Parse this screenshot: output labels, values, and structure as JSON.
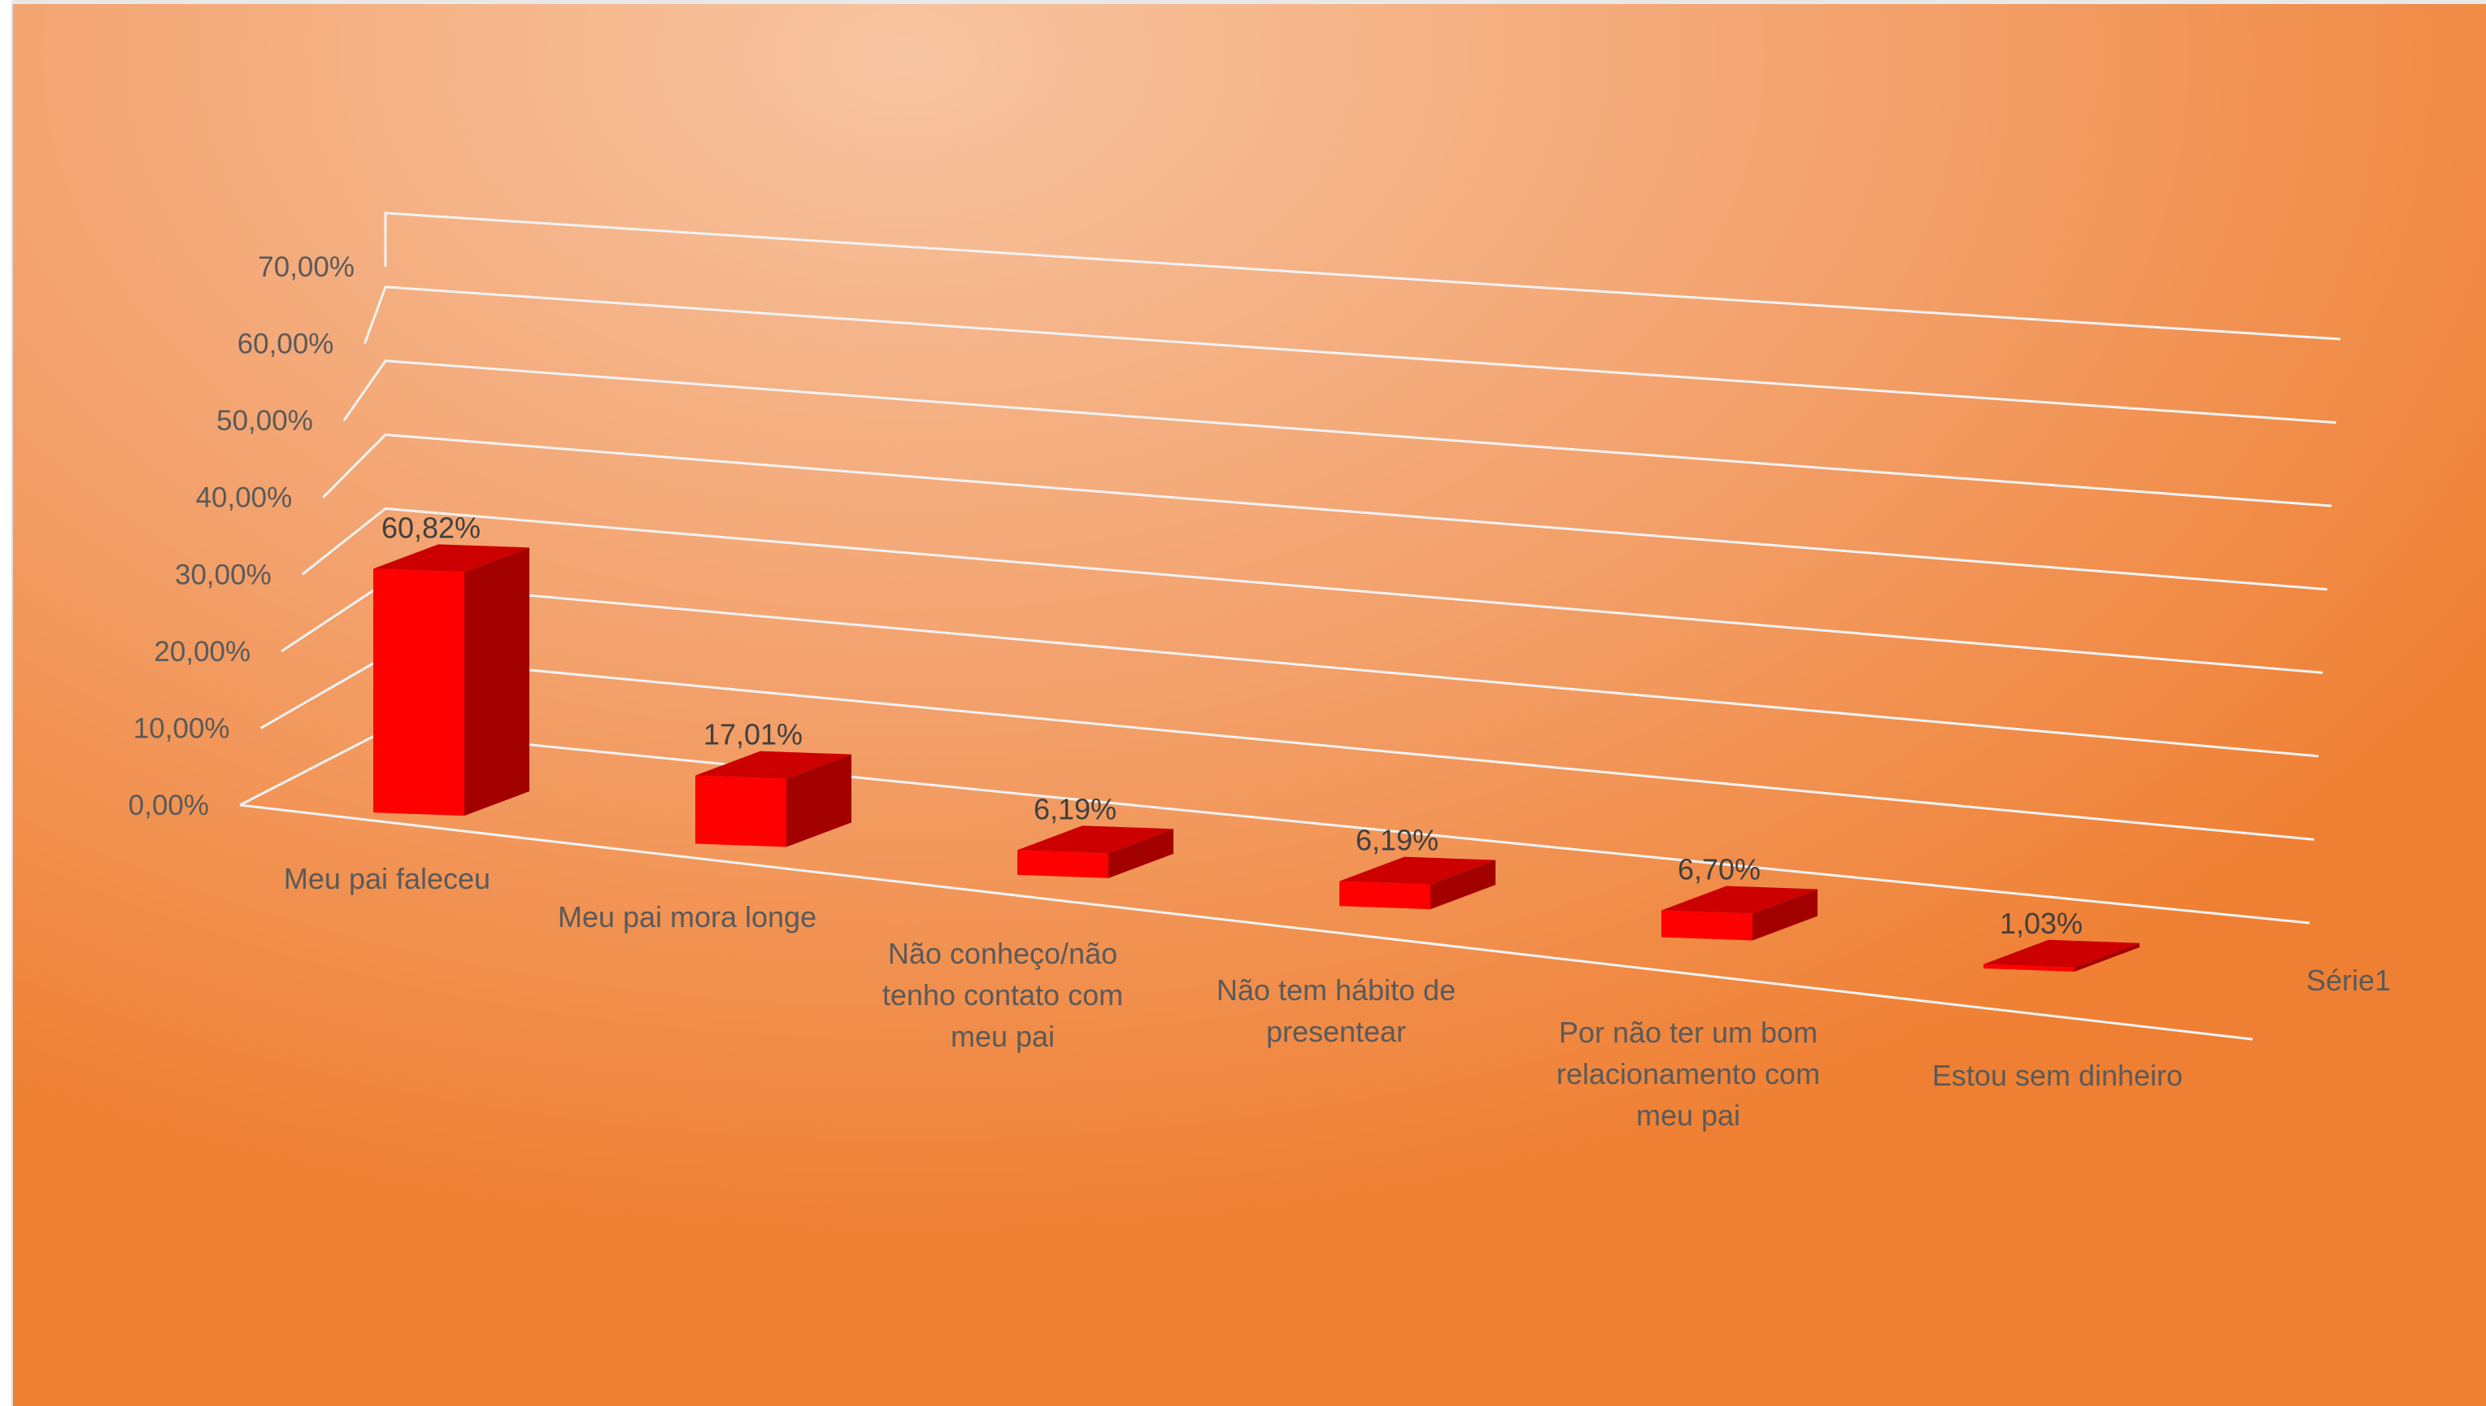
{
  "chart_data": {
    "type": "bar",
    "title": "",
    "xlabel": "",
    "ylabel": "",
    "categories": [
      [
        "Meu pai faleceu"
      ],
      [
        "Meu pai mora longe"
      ],
      [
        "Não conheço/não",
        "tenho contato com",
        "meu pai"
      ],
      [
        "Não tem hábito de",
        "presentear"
      ],
      [
        "Por não ter um bom",
        "relacionamento com",
        "meu pai"
      ],
      [
        "Estou sem dinheiro"
      ]
    ],
    "series": [
      {
        "name": "Série1",
        "values": [
          60.82,
          17.01,
          6.19,
          6.19,
          6.7,
          1.03
        ],
        "labels": [
          "60,82%",
          "17,01%",
          "6,19%",
          "6,19%",
          "6,70%",
          "1,03%"
        ]
      }
    ],
    "ylim": [
      0,
      70
    ],
    "yticks": [
      "0,00%",
      "10,00%",
      "20,00%",
      "30,00%",
      "40,00%",
      "50,00%",
      "60,00%",
      "70,00%"
    ],
    "grid": true,
    "legend": "right",
    "colors": {
      "front": "#ff0000",
      "top": "#cc0000",
      "side": "#a30000",
      "grid": "#f2f2f2"
    }
  }
}
